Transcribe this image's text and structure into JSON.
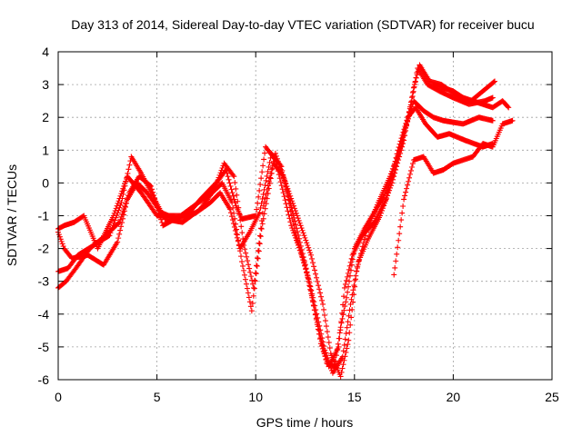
{
  "chart_data": {
    "type": "scatter",
    "title": "Day 313 of 2014, Sidereal Day-to-day VTEC variation (SDTVAR) for receiver bucu",
    "xlabel": "GPS time / hours",
    "ylabel": "SDTVAR / TECUs",
    "xlim": [
      0,
      25
    ],
    "ylim": [
      -6,
      4
    ],
    "xticks": [
      0,
      5,
      10,
      15,
      20,
      25
    ],
    "yticks": [
      -6,
      -5,
      -4,
      -3,
      -2,
      -1,
      0,
      1,
      2,
      3,
      4
    ],
    "grid": true,
    "marker": "+",
    "color": "#ff0000",
    "series": [
      {
        "x": [
          0,
          0.3,
          0.8,
          1.3,
          2.0,
          2.8,
          3.5,
          4.2,
          5.0,
          5.8,
          6.5,
          7.2,
          8.0,
          8.5,
          9.0,
          9.3,
          10.0,
          10.5,
          11.0,
          11.8,
          12.5,
          13.2,
          13.6,
          14.0,
          14.3,
          14.6,
          15.0,
          15.5,
          16.0,
          16.5,
          17.0,
          17.5,
          18.0,
          18.5,
          19.0,
          19.5,
          20.5,
          21.3,
          22.0
        ],
        "y": [
          -1.4,
          -1.3,
          -1.2,
          -1.0,
          -2.0,
          -1.0,
          0.2,
          -0.3,
          -1.0,
          -1.0,
          -1.0,
          -0.5,
          0.0,
          0.4,
          -0.7,
          -1.1,
          -1.0,
          1.1,
          0.7,
          -1.3,
          -2.5,
          -4.5,
          -5.5,
          -5.6,
          -4.4,
          -3.5,
          -2.0,
          -1.4,
          -0.9,
          -0.4,
          0.3,
          1.5,
          2.5,
          2.2,
          2.0,
          1.9,
          1.8,
          2.0,
          1.9
        ]
      },
      {
        "x": [
          0,
          0.3,
          0.7,
          1.5,
          2.3,
          3.0,
          3.5,
          4.0,
          4.5,
          5.2,
          6.0,
          7.0,
          7.7,
          8.2,
          8.7,
          9.2,
          9.7,
          10.2,
          10.8,
          11.3,
          12.0,
          12.7,
          13.3,
          13.7,
          14.2,
          14.5,
          14.9,
          15.4,
          16.0,
          16.6,
          17.2,
          17.7,
          18.1,
          18.6,
          19.2,
          19.8,
          20.6,
          21.5,
          22.0
        ],
        "y": [
          -1.5,
          -2.0,
          -2.3,
          -2.2,
          -2.5,
          -1.8,
          -0.5,
          0.0,
          -0.3,
          -0.9,
          -1.1,
          -0.9,
          -0.6,
          -0.3,
          -0.8,
          -2.0,
          -1.5,
          -0.9,
          0.9,
          0.5,
          -1.5,
          -3.0,
          -4.9,
          -5.6,
          -5.0,
          -3.2,
          -2.2,
          -1.6,
          -1.2,
          -0.5,
          1.0,
          2.0,
          2.3,
          1.8,
          1.4,
          1.5,
          1.3,
          1.1,
          1.2
        ]
      },
      {
        "x": [
          0,
          0.4,
          0.9,
          1.6,
          2.4,
          3.1,
          3.6,
          4.1,
          4.7,
          5.3,
          6.2,
          7.1,
          7.8,
          8.3,
          8.8,
          9.3,
          9.8,
          10.3,
          10.9,
          11.4,
          12.1,
          12.8,
          13.4,
          13.8,
          14.3,
          14.7,
          15.1,
          15.6,
          16.2,
          16.8,
          17.4,
          17.9,
          18.2,
          18.7,
          19.3,
          20.0,
          20.8,
          21.6,
          22.0
        ],
        "y": [
          -3.2,
          -3.0,
          -2.6,
          -2.0,
          -1.6,
          -1.2,
          -0.3,
          0.2,
          -0.1,
          -1.3,
          -1.0,
          -0.6,
          -0.3,
          0.0,
          -0.6,
          -2.4,
          -3.9,
          -1.4,
          0.6,
          0.2,
          -1.0,
          -2.2,
          -3.7,
          -5.2,
          -5.9,
          -4.8,
          -2.7,
          -1.5,
          -0.6,
          0.2,
          1.2,
          2.5,
          3.5,
          3.0,
          2.8,
          2.6,
          2.4,
          2.5,
          2.6
        ]
      },
      {
        "x": [
          0,
          0.5,
          1.0,
          1.8,
          2.6,
          3.2,
          3.7,
          4.2,
          4.8,
          5.4,
          6.3,
          7.2,
          7.9,
          8.4,
          8.9,
          9.4,
          9.9,
          10.4,
          11.0,
          11.5,
          12.2,
          12.9,
          13.5,
          13.9,
          14.4,
          14.8,
          15.2,
          15.7,
          16.3,
          16.9,
          17.5,
          18.0,
          18.3,
          18.8,
          19.4,
          20.1,
          20.9,
          21.7,
          22.1
        ],
        "y": [
          -2.7,
          -2.6,
          -2.2,
          -1.9,
          -1.6,
          -0.6,
          0.8,
          0.3,
          -0.4,
          -1.1,
          -1.2,
          -0.8,
          -0.2,
          0.6,
          0.2,
          -1.9,
          -3.2,
          -0.7,
          0.9,
          0.0,
          -1.7,
          -3.5,
          -5.1,
          -5.8,
          -5.3,
          -3.7,
          -2.4,
          -1.7,
          -1.0,
          0.0,
          1.3,
          2.9,
          3.6,
          3.1,
          3.0,
          2.7,
          2.5,
          2.9,
          3.1
        ]
      },
      {
        "x": [
          17.0,
          17.5,
          18.0,
          18.5,
          19.0,
          19.5,
          20.0,
          20.5,
          21.0,
          21.5,
          22.0,
          22.5,
          23.0
        ],
        "y": [
          -2.8,
          -0.5,
          0.7,
          0.8,
          0.3,
          0.4,
          0.6,
          0.7,
          0.8,
          1.2,
          1.1,
          1.8,
          1.9
        ]
      },
      {
        "x": [
          19.0,
          19.5,
          20.0,
          20.5,
          21.0,
          21.5,
          22.0,
          22.5,
          22.8
        ],
        "y": [
          3.0,
          2.9,
          2.8,
          2.6,
          2.5,
          2.4,
          2.3,
          2.5,
          2.3
        ]
      }
    ]
  }
}
